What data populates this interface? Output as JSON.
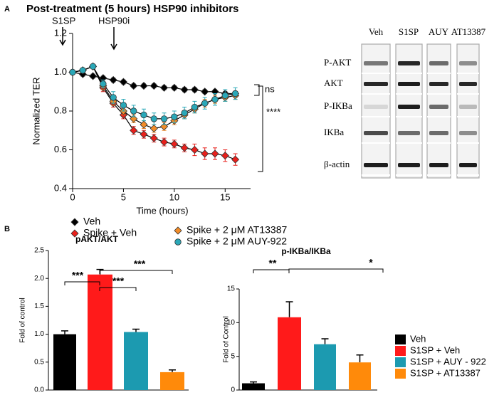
{
  "panel_labels": [
    "A",
    "B"
  ],
  "chart_data": [
    {
      "type": "line",
      "title": "Post-treatment (5 hours) HSP90 inhibitors",
      "xlabel": "Time (hours)",
      "ylabel": "Normalized TER",
      "x": [
        0,
        1,
        2,
        3,
        4,
        5,
        6,
        7,
        8,
        9,
        10,
        11,
        12,
        13,
        14,
        15,
        16
      ],
      "series": [
        {
          "name": "Veh",
          "color": "#000000",
          "marker": "diamond",
          "values": [
            1.0,
            0.99,
            0.98,
            0.97,
            0.96,
            0.95,
            0.93,
            0.93,
            0.93,
            0.92,
            0.92,
            0.91,
            0.91,
            0.9,
            0.9,
            0.89,
            0.89
          ],
          "errors": [
            0.01,
            0.01,
            0.01,
            0.01,
            0.01,
            0.01,
            0.01,
            0.01,
            0.01,
            0.01,
            0.01,
            0.01,
            0.01,
            0.01,
            0.01,
            0.01,
            0.01
          ]
        },
        {
          "name": "Spike + Veh",
          "color": "#e8201c",
          "marker": "diamond",
          "values": [
            1.0,
            1.01,
            1.03,
            0.92,
            0.84,
            0.78,
            0.7,
            0.68,
            0.66,
            0.64,
            0.63,
            0.61,
            0.6,
            0.58,
            0.58,
            0.57,
            0.55
          ],
          "errors": [
            0.01,
            0.01,
            0.01,
            0.02,
            0.02,
            0.02,
            0.02,
            0.02,
            0.02,
            0.02,
            0.02,
            0.02,
            0.03,
            0.03,
            0.03,
            0.03,
            0.03
          ]
        },
        {
          "name": "Spike + 2 μM AT13387",
          "color": "#f28c28",
          "marker": "diamond",
          "values": [
            1.0,
            1.01,
            1.03,
            0.93,
            0.85,
            0.8,
            0.76,
            0.73,
            0.71,
            0.72,
            0.75,
            0.78,
            0.81,
            0.84,
            0.86,
            0.87,
            0.88
          ],
          "errors": [
            0.01,
            0.01,
            0.01,
            0.02,
            0.02,
            0.02,
            0.02,
            0.02,
            0.02,
            0.02,
            0.02,
            0.02,
            0.02,
            0.02,
            0.02,
            0.02,
            0.02
          ]
        },
        {
          "name": "Spike + 2 μM AUY-922",
          "color": "#2aa8b8",
          "marker": "circle",
          "values": [
            1.0,
            1.01,
            1.03,
            0.94,
            0.87,
            0.83,
            0.8,
            0.78,
            0.76,
            0.76,
            0.77,
            0.79,
            0.82,
            0.84,
            0.86,
            0.88,
            0.89
          ],
          "errors": [
            0.01,
            0.01,
            0.01,
            0.02,
            0.03,
            0.03,
            0.03,
            0.03,
            0.03,
            0.03,
            0.03,
            0.03,
            0.03,
            0.03,
            0.03,
            0.03,
            0.03
          ]
        }
      ],
      "xlim": [
        0,
        17.5
      ],
      "xticks": [
        0,
        5,
        10,
        15
      ],
      "ylim": [
        0.4,
        1.2
      ],
      "yticks": [
        0.4,
        0.6,
        0.8,
        {
          "value": 1,
          "label": "1.0"
        },
        1.2
      ],
      "annotations": [
        "S1SP",
        "HSP90i",
        "ns",
        "****"
      ]
    },
    {
      "type": "bar",
      "title": "pAKT/AKT",
      "ylabel": "Fold of control",
      "categories": [
        null,
        null,
        null,
        null
      ],
      "values": [
        1.0,
        2.07,
        1.04,
        0.32
      ],
      "errors": [
        0.06,
        0.09,
        0.05,
        0.04
      ],
      "ylim": [
        0,
        2.5
      ],
      "yticks": [
        {
          "value": 0,
          "label": "0.0"
        },
        0.5,
        {
          "value": 1,
          "label": "1.0"
        },
        1.5,
        {
          "value": 2,
          "label": "2.0"
        },
        2.5
      ],
      "annotations": [
        "***",
        "***",
        "***"
      ]
    },
    {
      "type": "bar",
      "title": "p-IKBa/IKBa",
      "ylabel": "Fold of Control",
      "categories": [
        null,
        null,
        null,
        null
      ],
      "values": [
        1.0,
        10.8,
        6.8,
        4.1
      ],
      "errors": [
        0.2,
        2.3,
        0.8,
        1.1
      ],
      "ylim": [
        0,
        15
      ],
      "yticks": [
        0,
        5,
        10,
        15
      ],
      "annotations": [
        "**",
        "*"
      ]
    }
  ],
  "legend": [
    {
      "name": "Veh",
      "color": "#000000"
    },
    {
      "name": "S1SP + Veh",
      "color": "#ff1a1a"
    },
    {
      "name": "S1SP + AUY - 922",
      "color": "#1c9ab0"
    },
    {
      "name": "S1SP + AT13387",
      "color": "#ff8a0a"
    }
  ],
  "blot": {
    "columns": [
      "Veh",
      "S1SP",
      "AUY",
      "AT13387"
    ],
    "rows": [
      "P-AKT",
      "AKT",
      "P-IKBa",
      "IKBa",
      "β-actin"
    ]
  }
}
